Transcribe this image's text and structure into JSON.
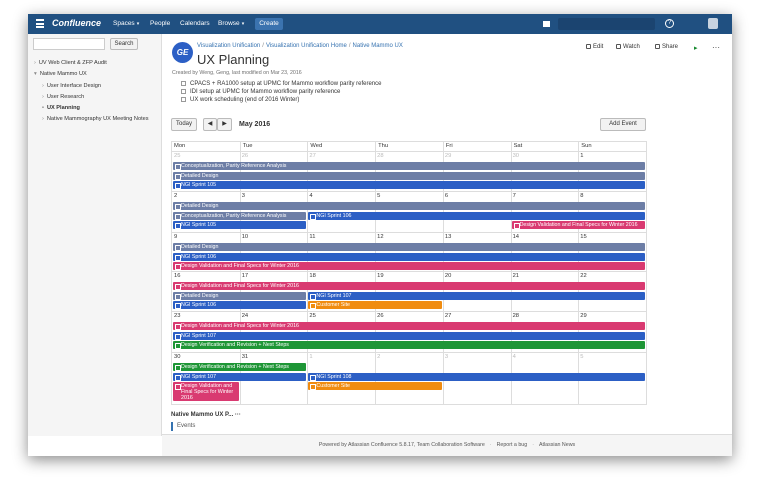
{
  "nav": {
    "logo": "Confluence",
    "items": [
      "Spaces",
      "People",
      "Calendars",
      "Browse"
    ],
    "create": "Create"
  },
  "sidebar": {
    "search_button": "Search",
    "tree": [
      "UV Web Client & ZFP Audit",
      "Native Mammo UX",
      "User Interface Design",
      "User Research",
      "UX Planning",
      "Native Mammography UX Meeting Notes"
    ]
  },
  "page": {
    "breadcrumbs": [
      "Visualization Unification",
      "Visualization Unification Home",
      "Native Mammo UX"
    ],
    "title": "UX Planning",
    "actions": [
      "Edit",
      "Watch",
      "Share"
    ],
    "meta": "Created by Weng, Geng, last modified on Mar 23, 2016",
    "tasks": [
      "CPACS + RA1000 setup at UPMC for Mammo workflow parity reference",
      "IDI setup at UPMC for Mammo workflow parity reference",
      "UX work scheduling (end of 2016 Winter)"
    ]
  },
  "calendar": {
    "today": "Today",
    "month": "May 2016",
    "add_event": "Add Event",
    "weekdays": [
      "Mon",
      "Tue",
      "Wed",
      "Thu",
      "Fri",
      "Sat",
      "Sun"
    ],
    "weeks": [
      {
        "days": [
          25,
          26,
          27,
          28,
          29,
          30,
          1
        ],
        "events": [
          "Conceptualization, Parity Reference Analysis",
          "Detailed Design",
          "NGI Sprint 105"
        ]
      },
      {
        "days": [
          2,
          3,
          4,
          5,
          6,
          7,
          8
        ],
        "events": [
          "Detailed Design",
          "Conceptualization, Parity Reference Analysis",
          "NGI Sprint 106",
          "NGI Sprint 105",
          "Design Validation and Final Specs for Winter 2016"
        ]
      },
      {
        "days": [
          9,
          10,
          11,
          12,
          13,
          14,
          15
        ],
        "events": [
          "Detailed Design",
          "NGI Sprint 106",
          "Design Validation and Final Specs for Winter 2016"
        ]
      },
      {
        "days": [
          16,
          17,
          18,
          19,
          20,
          21,
          22
        ],
        "events": [
          "Design Validation and Final Specs for Winter 2016",
          "Detailed Design",
          "NGI Sprint 107",
          "NGI Sprint 106",
          "Customer Site"
        ]
      },
      {
        "days": [
          23,
          24,
          25,
          26,
          27,
          28,
          29
        ],
        "events": [
          "Design Validation and Final Specs for Winter 2016",
          "NGI Sprint 107",
          "Design Verification and Revision + Next Steps"
        ]
      },
      {
        "days": [
          30,
          31,
          1,
          2,
          3,
          4,
          5
        ],
        "events": [
          "Design Verification and Revision + Next Steps",
          "NGI Sprint 107",
          "NGI Sprint 108",
          "Design Validation and Final Specs for Winter 2016",
          "Customer Site"
        ]
      }
    ]
  },
  "section": {
    "title": "Native Mammo UX P...",
    "more": "···",
    "events": "Events"
  },
  "footer": [
    "Powered by Atlassian Confluence 5.8.17, Team Collaboration Software",
    "Report a bug",
    "Atlassian News"
  ]
}
